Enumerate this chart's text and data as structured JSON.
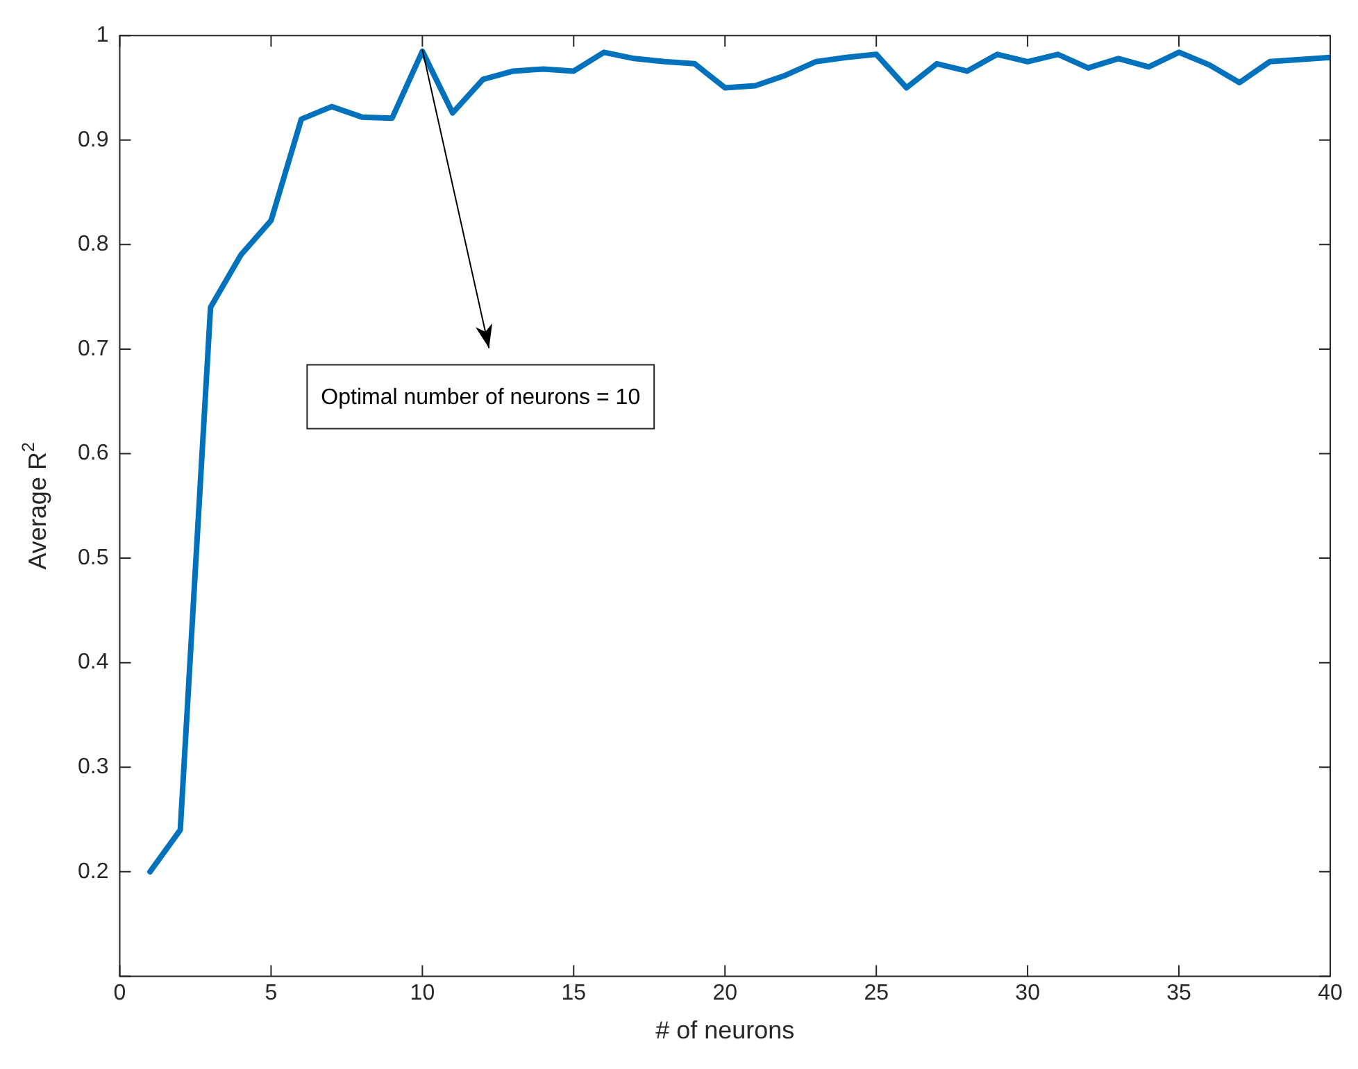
{
  "chart_data": {
    "type": "line",
    "xlabel": "# of neurons",
    "ylabel": "Average R$^{2}$",
    "x": [
      1,
      2,
      3,
      4,
      5,
      6,
      7,
      8,
      9,
      10,
      11,
      12,
      13,
      14,
      15,
      16,
      17,
      18,
      19,
      20,
      21,
      22,
      23,
      24,
      25,
      26,
      27,
      28,
      29,
      30,
      31,
      32,
      33,
      34,
      35,
      36,
      37,
      38,
      39,
      40
    ],
    "series": [
      {
        "color": "#0072bd",
        "values": [
          0.2,
          0.24,
          0.74,
          0.79,
          0.823,
          0.92,
          0.932,
          0.922,
          0.921,
          0.985,
          0.926,
          0.958,
          0.966,
          0.968,
          0.966,
          0.984,
          0.978,
          0.975,
          0.973,
          0.95,
          0.952,
          0.962,
          0.975,
          0.979,
          0.982,
          0.95,
          0.973,
          0.966,
          0.982,
          0.975,
          0.982,
          0.969,
          0.978,
          0.97,
          0.984,
          0.972,
          0.955,
          0.975,
          0.977,
          0.979
        ]
      }
    ],
    "xlim": [
      0,
      40
    ],
    "xticks": [
      0,
      5,
      10,
      15,
      20,
      25,
      30,
      35,
      40
    ],
    "ylim": [
      0.1,
      1
    ],
    "yticks": [
      {
        "value": 0.1,
        "label": null
      },
      0.2,
      0.3,
      0.4,
      0.5,
      0.6,
      0.7,
      0.8,
      0.9,
      1
    ],
    "annotations": [
      "Optimal number of neurons = 10"
    ],
    "grid": false,
    "legend": false,
    "marker": "none",
    "line_style": "solid"
  }
}
